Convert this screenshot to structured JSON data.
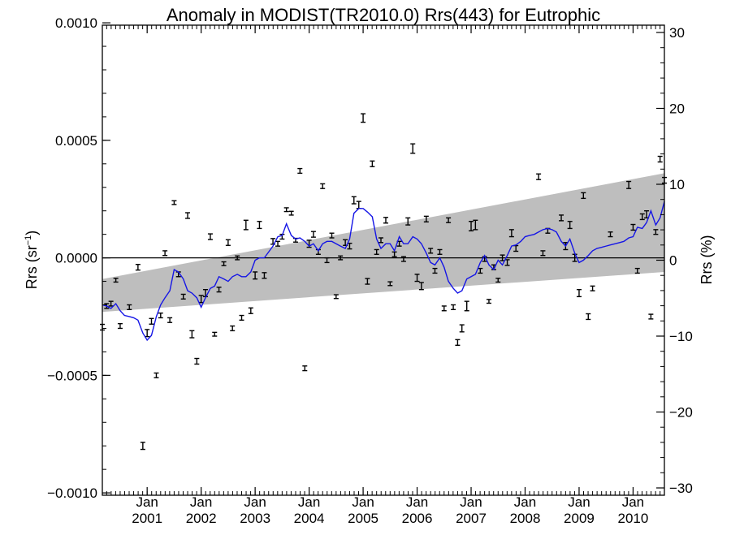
{
  "chart_data": {
    "type": "scatter",
    "title": "Anomaly in MODIST(TR2010.0) Rrs(443) for Eutrophic",
    "ylabel_left": "Rrs (sr",
    "ylabel_left_sup": "−1",
    "ylabel_left_close": ")",
    "ylabel_right": "Rrs (%)",
    "x_range": [
      2000.17,
      2010.58
    ],
    "ylim": [
      -0.00101,
      0.00099
    ],
    "y2lim": [
      -30,
      30
    ],
    "y_ticks": [
      {
        "value": 0.001,
        "label": "0.0010"
      },
      {
        "value": 0.0005,
        "label": "0.0005"
      },
      {
        "value": 0.0,
        "label": "0.0000"
      },
      {
        "value": -0.0005,
        "label": "−0.0005"
      },
      {
        "value": -0.001,
        "label": "−0.0010"
      }
    ],
    "y2_ticks": [
      {
        "value": 30,
        "label": "30"
      },
      {
        "value": 20,
        "label": "20"
      },
      {
        "value": 10,
        "label": "10"
      },
      {
        "value": 0,
        "label": "0"
      },
      {
        "value": -10,
        "label": "−10"
      },
      {
        "value": -20,
        "label": "−20"
      },
      {
        "value": -30,
        "label": "−30"
      }
    ],
    "x_ticks": [
      {
        "value": 2001.0,
        "month": "Jan",
        "year": "2001"
      },
      {
        "value": 2002.0,
        "month": "Jan",
        "year": "2002"
      },
      {
        "value": 2003.0,
        "month": "Jan",
        "year": "2003"
      },
      {
        "value": 2004.0,
        "month": "Jan",
        "year": "2004"
      },
      {
        "value": 2005.0,
        "month": "Jan",
        "year": "2005"
      },
      {
        "value": 2006.0,
        "month": "Jan",
        "year": "2006"
      },
      {
        "value": 2007.0,
        "month": "Jan",
        "year": "2007"
      },
      {
        "value": 2008.0,
        "month": "Jan",
        "year": "2008"
      },
      {
        "value": 2009.0,
        "month": "Jan",
        "year": "2009"
      },
      {
        "value": 2010.0,
        "month": "Jan",
        "year": "2010"
      }
    ],
    "zero_line": 0.0,
    "shaded_band": {
      "x": [
        2000.17,
        2010.58
      ],
      "upper": [
        -9e-05,
        0.00036
      ],
      "lower": [
        -0.00023,
        -6e-05
      ],
      "color": "#bebebe"
    },
    "points": [
      {
        "x": 2000.17,
        "y": -0.000295,
        "err": 1.2e-05
      },
      {
        "x": 2000.25,
        "y": -0.000205,
        "err": 1e-05
      },
      {
        "x": 2000.33,
        "y": -0.000195,
        "err": 1e-05
      },
      {
        "x": 2000.42,
        "y": -9.5e-05,
        "err": 8e-06
      },
      {
        "x": 2000.5,
        "y": -0.00029,
        "err": 1e-05
      },
      {
        "x": 2000.67,
        "y": -0.00021,
        "err": 1e-05
      },
      {
        "x": 2000.83,
        "y": -4e-05,
        "err": 1.2e-05
      },
      {
        "x": 2000.92,
        "y": -0.0008,
        "err": 1.5e-05
      },
      {
        "x": 2001.0,
        "y": -0.00032,
        "err": 1.5e-05
      },
      {
        "x": 2001.08,
        "y": -0.00027,
        "err": 1.2e-05
      },
      {
        "x": 2001.17,
        "y": -0.0005,
        "err": 1e-05
      },
      {
        "x": 2001.25,
        "y": -0.000245,
        "err": 1e-05
      },
      {
        "x": 2001.33,
        "y": 2e-05,
        "err": 1e-05
      },
      {
        "x": 2001.42,
        "y": -0.000265,
        "err": 1e-05
      },
      {
        "x": 2001.5,
        "y": 0.000235,
        "err": 8e-06
      },
      {
        "x": 2001.58,
        "y": -7e-05,
        "err": 1e-05
      },
      {
        "x": 2001.67,
        "y": -0.000165,
        "err": 1e-05
      },
      {
        "x": 2001.75,
        "y": 0.00018,
        "err": 1.2e-05
      },
      {
        "x": 2001.83,
        "y": -0.000325,
        "err": 1.5e-05
      },
      {
        "x": 2001.92,
        "y": -0.00044,
        "err": 1.2e-05
      },
      {
        "x": 2002.0,
        "y": -0.000175,
        "err": 1.5e-05
      },
      {
        "x": 2002.08,
        "y": -0.00015,
        "err": 1.5e-05
      },
      {
        "x": 2002.17,
        "y": 9e-05,
        "err": 1.2e-05
      },
      {
        "x": 2002.25,
        "y": -0.000325,
        "err": 8e-06
      },
      {
        "x": 2002.33,
        "y": -0.000135,
        "err": 1e-05
      },
      {
        "x": 2002.42,
        "y": -2.5e-05,
        "err": 8e-06
      },
      {
        "x": 2002.5,
        "y": 6.5e-05,
        "err": 1.2e-05
      },
      {
        "x": 2002.58,
        "y": -0.0003,
        "err": 1e-05
      },
      {
        "x": 2002.67,
        "y": 0.0,
        "err": 8e-06
      },
      {
        "x": 2002.75,
        "y": -0.000255,
        "err": 1e-05
      },
      {
        "x": 2002.83,
        "y": 0.00014,
        "err": 2e-05
      },
      {
        "x": 2002.92,
        "y": -0.000225,
        "err": 1.2e-05
      },
      {
        "x": 2003.0,
        "y": -7.5e-05,
        "err": 1.5e-05
      },
      {
        "x": 2003.08,
        "y": 0.00014,
        "err": 1.5e-05
      },
      {
        "x": 2003.17,
        "y": -7.5e-05,
        "err": 1.2e-05
      },
      {
        "x": 2003.33,
        "y": 7e-05,
        "err": 1.2e-05
      },
      {
        "x": 2003.42,
        "y": 6e-05,
        "err": 1e-05
      },
      {
        "x": 2003.5,
        "y": 9e-05,
        "err": 1e-05
      },
      {
        "x": 2003.58,
        "y": 0.000205,
        "err": 8e-06
      },
      {
        "x": 2003.67,
        "y": 0.00019,
        "err": 8e-06
      },
      {
        "x": 2003.75,
        "y": 7.5e-05,
        "err": 8e-06
      },
      {
        "x": 2003.83,
        "y": 0.00037,
        "err": 1e-05
      },
      {
        "x": 2003.92,
        "y": -0.00047,
        "err": 1e-05
      },
      {
        "x": 2004.0,
        "y": 6e-05,
        "err": 1.5e-05
      },
      {
        "x": 2004.08,
        "y": 0.0001,
        "err": 1.2e-05
      },
      {
        "x": 2004.17,
        "y": 2.5e-05,
        "err": 1e-05
      },
      {
        "x": 2004.25,
        "y": 0.000305,
        "err": 1e-05
      },
      {
        "x": 2004.33,
        "y": -1e-05,
        "err": 1e-05
      },
      {
        "x": 2004.42,
        "y": 9.5e-05,
        "err": 1e-05
      },
      {
        "x": 2004.5,
        "y": -0.000165,
        "err": 8e-06
      },
      {
        "x": 2004.58,
        "y": 0.0,
        "err": 8e-06
      },
      {
        "x": 2004.67,
        "y": 6.5e-05,
        "err": 1.2e-05
      },
      {
        "x": 2004.75,
        "y": 5e-05,
        "err": 1.2e-05
      },
      {
        "x": 2004.83,
        "y": 0.000245,
        "err": 1.5e-05
      },
      {
        "x": 2004.92,
        "y": 0.000225,
        "err": 1.5e-05
      },
      {
        "x": 2005.0,
        "y": 0.000595,
        "err": 1.8e-05
      },
      {
        "x": 2005.08,
        "y": -0.0001,
        "err": 1.2e-05
      },
      {
        "x": 2005.17,
        "y": 0.0004,
        "err": 1.2e-05
      },
      {
        "x": 2005.25,
        "y": 2.5e-05,
        "err": 1e-05
      },
      {
        "x": 2005.33,
        "y": 7.5e-05,
        "err": 1e-05
      },
      {
        "x": 2005.42,
        "y": 0.00016,
        "err": 1.2e-05
      },
      {
        "x": 2005.5,
        "y": -0.00011,
        "err": 8e-06
      },
      {
        "x": 2005.58,
        "y": 1.5e-05,
        "err": 1e-05
      },
      {
        "x": 2005.67,
        "y": 6e-05,
        "err": 1e-05
      },
      {
        "x": 2005.75,
        "y": -5e-06,
        "err": 1e-05
      },
      {
        "x": 2005.83,
        "y": 0.000155,
        "err": 1.5e-05
      },
      {
        "x": 2005.92,
        "y": 0.000465,
        "err": 2e-05
      },
      {
        "x": 2006.0,
        "y": -8.5e-05,
        "err": 1.5e-05
      },
      {
        "x": 2006.08,
        "y": -0.00012,
        "err": 1.5e-05
      },
      {
        "x": 2006.17,
        "y": 0.000165,
        "err": 1.2e-05
      },
      {
        "x": 2006.25,
        "y": 3e-05,
        "err": 1e-05
      },
      {
        "x": 2006.33,
        "y": -5.5e-05,
        "err": 1e-05
      },
      {
        "x": 2006.42,
        "y": 2.5e-05,
        "err": 1e-05
      },
      {
        "x": 2006.5,
        "y": -0.000215,
        "err": 1e-05
      },
      {
        "x": 2006.58,
        "y": 0.00016,
        "err": 1e-05
      },
      {
        "x": 2006.67,
        "y": -0.00021,
        "err": 1e-05
      },
      {
        "x": 2006.75,
        "y": -0.00036,
        "err": 1.2e-05
      },
      {
        "x": 2006.83,
        "y": -0.0003,
        "err": 1.5e-05
      },
      {
        "x": 2006.92,
        "y": -0.000205,
        "err": 2e-05
      },
      {
        "x": 2007.0,
        "y": 0.000135,
        "err": 2e-05
      },
      {
        "x": 2007.08,
        "y": 0.00014,
        "err": 2e-05
      },
      {
        "x": 2007.17,
        "y": -5.5e-05,
        "err": 1e-05
      },
      {
        "x": 2007.25,
        "y": -5e-06,
        "err": 1e-05
      },
      {
        "x": 2007.33,
        "y": -0.000185,
        "err": 8e-06
      },
      {
        "x": 2007.42,
        "y": -4e-05,
        "err": 1e-05
      },
      {
        "x": 2007.5,
        "y": -9.5e-05,
        "err": 8e-06
      },
      {
        "x": 2007.58,
        "y": 0.0,
        "err": 1.2e-05
      },
      {
        "x": 2007.67,
        "y": -2e-05,
        "err": 1.2e-05
      },
      {
        "x": 2007.75,
        "y": 0.000105,
        "err": 1.5e-05
      },
      {
        "x": 2007.83,
        "y": 4e-05,
        "err": 1.2e-05
      },
      {
        "x": 2008.25,
        "y": 0.000345,
        "err": 1.2e-05
      },
      {
        "x": 2008.33,
        "y": 2e-05,
        "err": 1e-05
      },
      {
        "x": 2008.42,
        "y": 0.000115,
        "err": 1e-05
      },
      {
        "x": 2008.67,
        "y": 0.00017,
        "err": 1.2e-05
      },
      {
        "x": 2008.75,
        "y": 5e-05,
        "err": 1.5e-05
      },
      {
        "x": 2008.83,
        "y": 0.00014,
        "err": 1.5e-05
      },
      {
        "x": 2008.92,
        "y": 0.0,
        "err": 1.5e-05
      },
      {
        "x": 2009.0,
        "y": -0.00015,
        "err": 1.5e-05
      },
      {
        "x": 2009.08,
        "y": 0.000265,
        "err": 1.2e-05
      },
      {
        "x": 2009.17,
        "y": -0.00025,
        "err": 1.2e-05
      },
      {
        "x": 2009.25,
        "y": -0.00013,
        "err": 1e-05
      },
      {
        "x": 2009.58,
        "y": 0.0001,
        "err": 1e-05
      },
      {
        "x": 2009.92,
        "y": 0.00031,
        "err": 1.5e-05
      },
      {
        "x": 2010.0,
        "y": 0.00013,
        "err": 1.2e-05
      },
      {
        "x": 2010.08,
        "y": -5.5e-05,
        "err": 1e-05
      },
      {
        "x": 2010.17,
        "y": 0.000175,
        "err": 1.2e-05
      },
      {
        "x": 2010.25,
        "y": 0.000185,
        "err": 1.5e-05
      },
      {
        "x": 2010.33,
        "y": -0.00025,
        "err": 1e-05
      },
      {
        "x": 2010.42,
        "y": 0.00011,
        "err": 1e-05
      },
      {
        "x": 2010.5,
        "y": 0.00042,
        "err": 1.2e-05
      },
      {
        "x": 2010.58,
        "y": 0.00033,
        "err": 1.2e-05
      }
    ],
    "smooth_line": {
      "color": "#1515e6",
      "x": [
        2000.17,
        2000.25,
        2000.33,
        2000.42,
        2000.5,
        2000.58,
        2000.67,
        2000.75,
        2000.83,
        2000.92,
        2001.0,
        2001.08,
        2001.17,
        2001.25,
        2001.33,
        2001.42,
        2001.5,
        2001.58,
        2001.67,
        2001.75,
        2001.83,
        2001.92,
        2002.0,
        2002.08,
        2002.17,
        2002.25,
        2002.33,
        2002.42,
        2002.5,
        2002.58,
        2002.67,
        2002.75,
        2002.83,
        2002.92,
        2003.0,
        2003.08,
        2003.17,
        2003.25,
        2003.33,
        2003.42,
        2003.5,
        2003.58,
        2003.67,
        2003.75,
        2003.83,
        2003.92,
        2004.0,
        2004.08,
        2004.17,
        2004.25,
        2004.33,
        2004.42,
        2004.5,
        2004.58,
        2004.67,
        2004.75,
        2004.83,
        2004.92,
        2005.0,
        2005.08,
        2005.17,
        2005.25,
        2005.33,
        2005.42,
        2005.5,
        2005.58,
        2005.67,
        2005.75,
        2005.83,
        2005.92,
        2006.0,
        2006.08,
        2006.17,
        2006.25,
        2006.33,
        2006.42,
        2006.5,
        2006.58,
        2006.67,
        2006.75,
        2006.83,
        2006.92,
        2007.0,
        2007.08,
        2007.17,
        2007.25,
        2007.33,
        2007.42,
        2007.5,
        2007.58,
        2007.67,
        2007.75,
        2007.83,
        2007.92,
        2008.0,
        2008.08,
        2008.17,
        2008.25,
        2008.33,
        2008.42,
        2008.5,
        2008.58,
        2008.67,
        2008.75,
        2008.83,
        2008.92,
        2009.0,
        2009.08,
        2009.17,
        2009.25,
        2009.33,
        2009.42,
        2009.5,
        2009.58,
        2009.67,
        2009.75,
        2009.83,
        2009.92,
        2010.0,
        2010.08,
        2010.17,
        2010.25,
        2010.33,
        2010.42,
        2010.5,
        2010.58
      ],
      "y": [
        -0.0002,
        -0.000205,
        -0.000215,
        -0.000195,
        -0.000225,
        -0.000245,
        -0.00025,
        -0.000255,
        -0.000265,
        -0.00032,
        -0.00035,
        -0.00033,
        -0.00025,
        -0.0002,
        -0.00017,
        -0.00014,
        -5e-05,
        -6e-05,
        -9e-05,
        -0.00014,
        -0.00015,
        -0.00017,
        -0.00021,
        -0.00017,
        -0.00013,
        -0.00012,
        -8e-05,
        -9e-05,
        -0.0001,
        -8e-05,
        -7e-05,
        -8e-05,
        -8e-05,
        -6e-05,
        -1e-05,
        0.0,
        0.0,
        2.5e-05,
        5e-05,
        9e-05,
        9.5e-05,
        0.000145,
        9.5e-05,
        8e-05,
        8.5e-05,
        7e-05,
        5e-05,
        6e-05,
        3e-05,
        6e-05,
        7e-05,
        7e-05,
        6e-05,
        5e-05,
        4e-05,
        8e-05,
        0.00019,
        0.00021,
        0.00021,
        0.000195,
        0.000175,
        8e-05,
        4e-05,
        6e-05,
        6e-05,
        3e-05,
        9e-05,
        6e-05,
        6e-05,
        9e-05,
        8e-05,
        6e-05,
        2e-05,
        -2e-05,
        -3e-05,
        0.0,
        -4e-05,
        -0.0001,
        -0.00013,
        -0.00015,
        -0.00014,
        -9e-05,
        -8e-05,
        -7e-05,
        -2e-05,
        1e-05,
        -3e-05,
        -5e-05,
        -1e-05,
        -3e-05,
        1e-05,
        5e-05,
        5.5e-05,
        7e-05,
        9e-05,
        9.5e-05,
        0.0001,
        0.00011,
        0.00012,
        0.000125,
        0.00012,
        0.00011,
        7e-05,
        5e-05,
        8e-05,
        2e-05,
        -2e-05,
        -1e-05,
        1e-05,
        3e-05,
        4e-05,
        4.5e-05,
        5e-05,
        5.5e-05,
        6e-05,
        6.5e-05,
        7e-05,
        8.5e-05,
        9e-05,
        0.00013,
        0.000125,
        0.00015,
        0.0002,
        0.00014,
        0.00017,
        0.00024
      ]
    }
  }
}
